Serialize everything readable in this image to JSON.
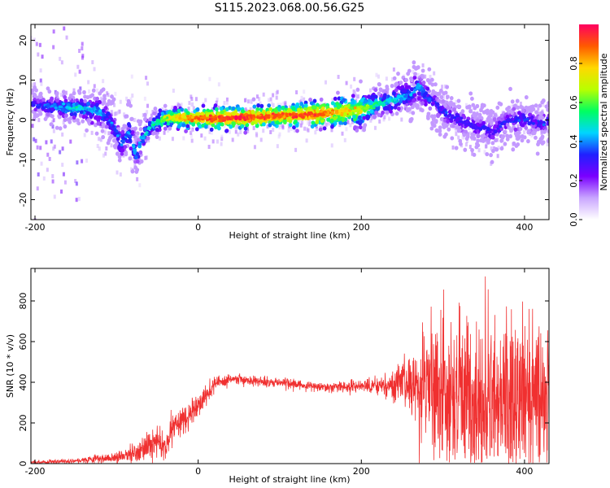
{
  "title": "S115.2023.068.00.56.G25",
  "colorbar": {
    "label": "Normalized spectral amplitude",
    "ticks": [
      0.0,
      0.2,
      0.4,
      0.6,
      0.8
    ],
    "tick_labels": [
      "0.0",
      "0.2",
      "0.4",
      "0.6",
      "0.8"
    ],
    "range": [
      0,
      1
    ],
    "colors": [
      "#ffffff",
      "#c9a6ff",
      "#7a00ff",
      "#2020ff",
      "#00d5ff",
      "#00ff60",
      "#b8ff00",
      "#ffd800",
      "#ff5a00",
      "#ff0060"
    ]
  },
  "chart_data": [
    {
      "type": "heatmap",
      "name": "spectrogram",
      "xlabel": "Height of straight line (km)",
      "ylabel": "Frequency (Hz)",
      "xlim": [
        -205,
        430
      ],
      "ylim": [
        -25,
        24
      ],
      "xticks": [
        -200,
        0,
        200,
        400
      ],
      "xtick_labels": [
        "-200",
        "0",
        "200",
        "400"
      ],
      "yticks": [
        -20,
        -10,
        0,
        10,
        20
      ],
      "ytick_labels": [
        "-20",
        "-10",
        "0",
        "10",
        "20"
      ],
      "ridge": {
        "x": [
          -205,
          -180,
          -160,
          -140,
          -120,
          -110,
          -100,
          -95,
          -90,
          -85,
          -80,
          -75,
          -70,
          -60,
          -50,
          -40,
          -20,
          0,
          50,
          100,
          150,
          200,
          220,
          240,
          260,
          270,
          280,
          290,
          300,
          320,
          340,
          350,
          360,
          380,
          400,
          420,
          430
        ],
        "y": [
          4,
          3.5,
          3,
          3,
          2,
          0,
          -3,
          -6,
          -5,
          -3,
          -6,
          -9,
          -5,
          -2,
          -0.5,
          0.5,
          0.5,
          0.5,
          0.5,
          1,
          1.5,
          2.5,
          4,
          5,
          6.5,
          8.5,
          6,
          4,
          2,
          0,
          -2,
          -2,
          -3,
          0,
          0,
          -1,
          0
        ],
        "amplitude": [
          0.3,
          0.35,
          0.45,
          0.45,
          0.4,
          0.35,
          0.35,
          0.4,
          0.35,
          0.4,
          0.45,
          0.35,
          0.4,
          0.5,
          0.55,
          0.7,
          0.8,
          0.9,
          0.95,
          0.9,
          0.9,
          0.7,
          0.5,
          0.45,
          0.4,
          0.4,
          0.35,
          0.3,
          0.3,
          0.3,
          0.3,
          0.3,
          0.3,
          0.3,
          0.3,
          0.3,
          0.3
        ],
        "width": [
          2,
          2,
          2,
          2,
          3,
          3,
          3,
          3,
          3,
          3,
          3,
          3,
          2.5,
          1.5,
          1.5,
          1.2,
          1.2,
          1.2,
          1.2,
          1.2,
          1.5,
          2,
          2,
          2.5,
          3,
          3,
          3,
          3,
          3,
          3,
          3,
          3,
          3,
          3,
          3,
          3,
          3
        ]
      }
    },
    {
      "type": "line",
      "name": "snr",
      "xlabel": "Height of straight line (km)",
      "ylabel": "SNR (10 * v/v)",
      "xlim": [
        -205,
        430
      ],
      "ylim": [
        0,
        960
      ],
      "xticks": [
        -200,
        0,
        200,
        400
      ],
      "xtick_labels": [
        "-200",
        "0",
        "200",
        "400"
      ],
      "yticks": [
        0,
        200,
        400,
        600,
        800
      ],
      "ytick_labels": [
        "0",
        "200",
        "400",
        "600",
        "800"
      ],
      "color": "#f03030",
      "envelope": {
        "x": [
          -205,
          -150,
          -100,
          -70,
          -50,
          -40,
          -30,
          -20,
          0,
          10,
          20,
          40,
          60,
          80,
          100,
          130,
          160,
          190,
          220,
          250,
          270,
          290,
          310,
          330,
          350,
          370,
          390,
          410,
          430
        ],
        "mean": [
          5,
          15,
          30,
          60,
          110,
          80,
          170,
          220,
          280,
          340,
          390,
          415,
          410,
          405,
          400,
          385,
          375,
          380,
          385,
          390,
          380,
          370,
          340,
          320,
          310,
          300,
          320,
          330,
          320
        ],
        "noise": [
          5,
          8,
          15,
          35,
          55,
          40,
          50,
          50,
          40,
          30,
          20,
          15,
          15,
          15,
          15,
          15,
          15,
          20,
          25,
          60,
          130,
          190,
          230,
          250,
          260,
          260,
          260,
          250,
          240
        ]
      }
    }
  ]
}
